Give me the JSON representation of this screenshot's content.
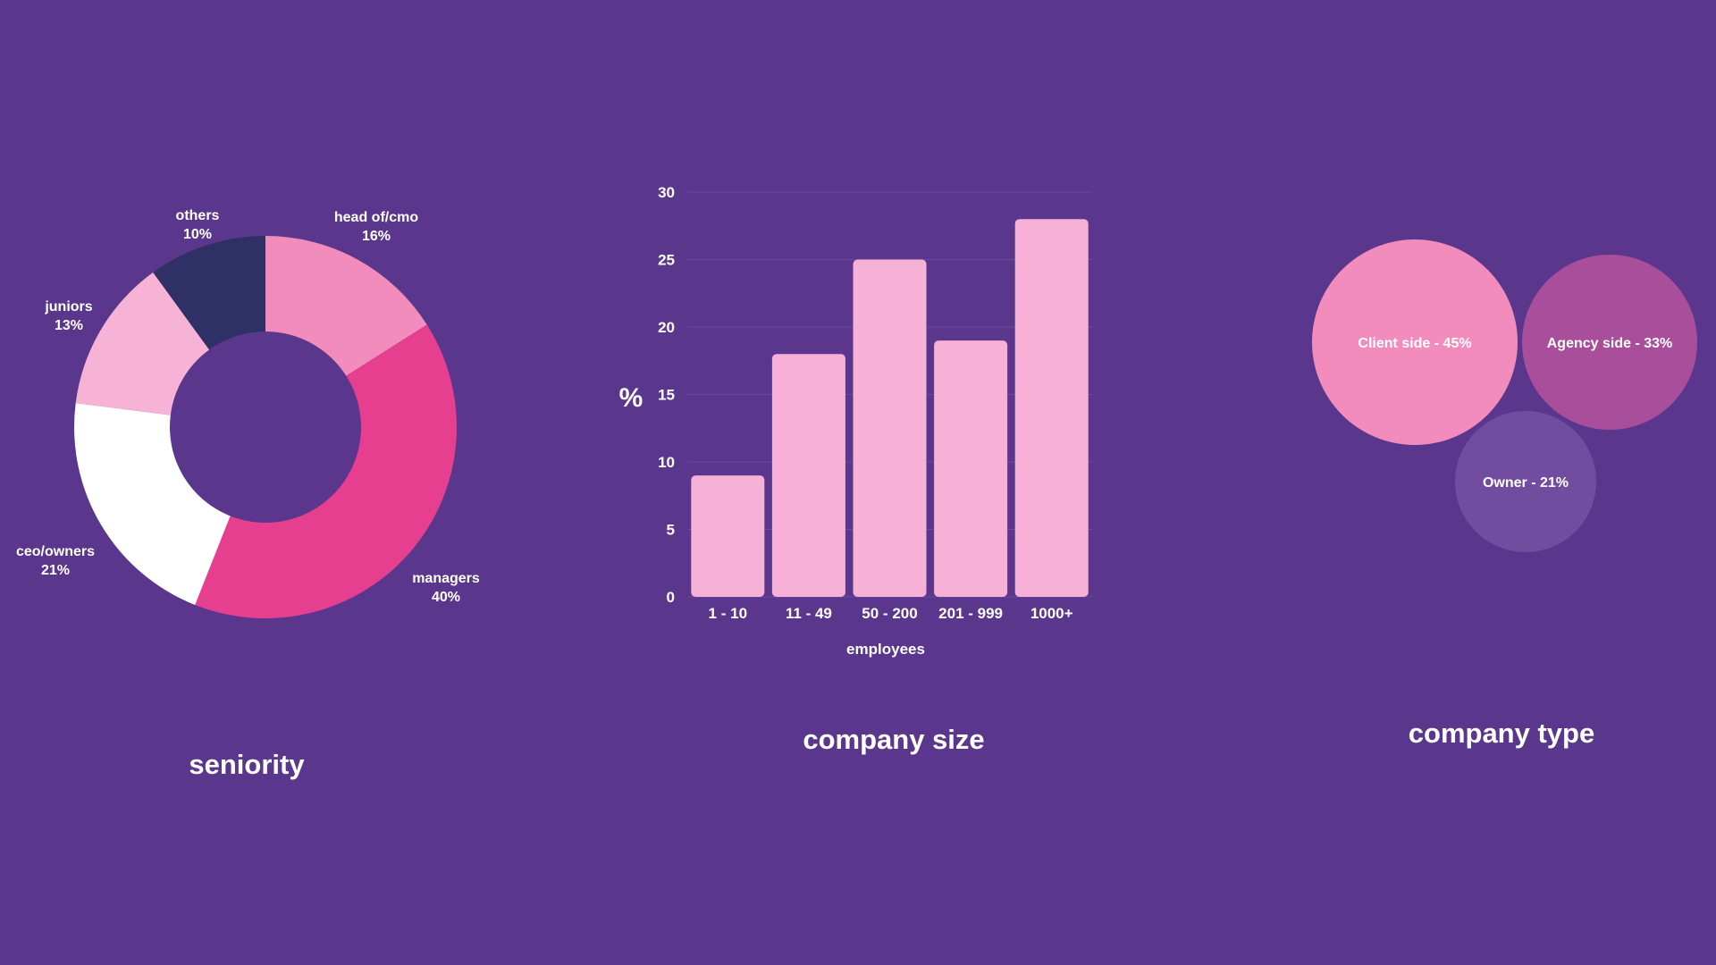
{
  "colors": {
    "background": "#5a378c",
    "gridline": "#6a4a9a",
    "donut": [
      "#f28cbd",
      "#e63f8f",
      "#ffffff",
      "#f7b3d6",
      "#2f3065"
    ],
    "bar": "#f7b0d6",
    "bubbles": [
      "#f28cbd",
      "#a84e9b",
      "#724d9f"
    ]
  },
  "chart_data": [
    {
      "type": "pie",
      "variant": "donut",
      "title": "seniority",
      "slices": [
        {
          "label": "head of/cmo",
          "value": 16,
          "value_label": "16%"
        },
        {
          "label": "managers",
          "value": 40,
          "value_label": "40%"
        },
        {
          "label": "ceo/owners",
          "value": 21,
          "value_label": "21%"
        },
        {
          "label": "juniors",
          "value": 13,
          "value_label": "13%"
        },
        {
          "label": "others",
          "value": 10,
          "value_label": "10%"
        }
      ]
    },
    {
      "type": "bar",
      "title": "company size",
      "xlabel": "employees",
      "ylabel": "%",
      "categories": [
        "1 - 10",
        "11 - 49",
        "50 - 200",
        "201 - 999",
        "1000+"
      ],
      "values": [
        9,
        18,
        25,
        19,
        28
      ],
      "ylim": [
        0,
        30
      ],
      "yticks": [
        0,
        5,
        10,
        15,
        20,
        25,
        30
      ],
      "grid": true
    },
    {
      "type": "bubble",
      "title": "company type",
      "items": [
        {
          "label": "Client side - 45%",
          "value": 45
        },
        {
          "label": "Agency side - 33%",
          "value": 33
        },
        {
          "label": "Owner - 21%",
          "value": 21
        }
      ]
    }
  ]
}
